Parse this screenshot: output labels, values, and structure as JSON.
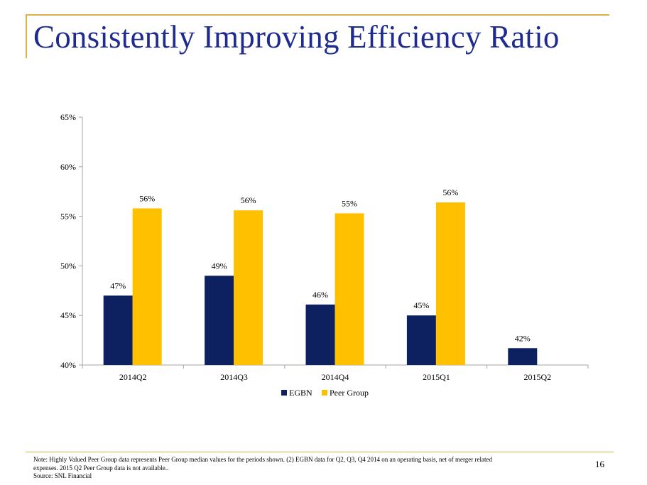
{
  "slide": {
    "title": "Consistently Improving Efficiency Ratio",
    "page_number": "16",
    "footnote_lines": [
      "Note: Highly Valued Peer Group data represents Peer Group median values for the periods shown.  (2) EGBN data for Q2, Q3, Q4 2014 on an operating basis, net of merger related",
      "expenses. 2015 Q2 Peer Group data is not available..",
      "Source: SNL Financial"
    ]
  },
  "colors": {
    "egbn": "#0d2160",
    "peer_group": "#ffc000",
    "accent_rule": "#d9b44a",
    "title": "#1f2b8f"
  },
  "chart_data": {
    "type": "bar",
    "title": "",
    "xlabel": "",
    "ylabel": "",
    "categories": [
      "2014Q2",
      "2014Q3",
      "2014Q4",
      "2015Q1",
      "2015Q2"
    ],
    "series": [
      {
        "name": "EGBN",
        "values": [
          47.0,
          49.0,
          46.1,
          45.0,
          41.7
        ],
        "labels": [
          "47%",
          "49%",
          "46%",
          "45%",
          "42%"
        ]
      },
      {
        "name": "Peer Group",
        "values": [
          55.8,
          55.6,
          55.3,
          56.4,
          null
        ],
        "labels": [
          "56%",
          "56%",
          "55%",
          "56%",
          ""
        ]
      }
    ],
    "ylim": [
      40,
      65
    ],
    "yticks": [
      40,
      45,
      50,
      55,
      60,
      65
    ],
    "ytick_labels": [
      "40%",
      "45%",
      "50%",
      "55%",
      "60%",
      "65%"
    ],
    "grid": false,
    "legend_position": "bottom"
  }
}
